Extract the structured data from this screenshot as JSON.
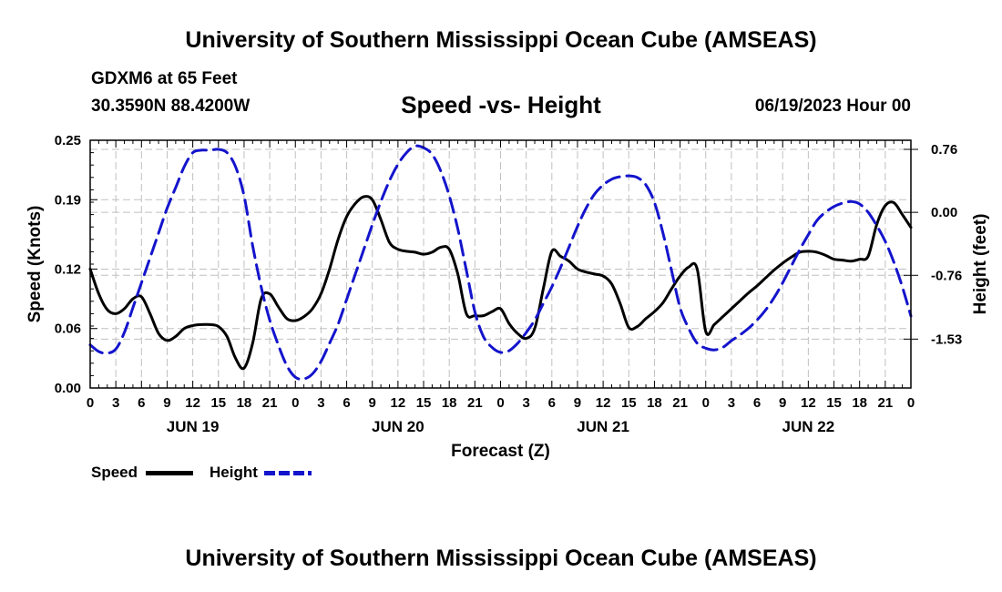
{
  "header": {
    "title": "University of Southern Mississippi Ocean Cube (AMSEAS)",
    "station": "GDXM6 at 65 Feet",
    "location": "30.3590N  88.4200W",
    "run": "06/19/2023 Hour 00"
  },
  "footer": {
    "title": "University of Southern Mississippi Ocean Cube (AMSEAS)"
  },
  "legend": {
    "speed_label": "Speed",
    "height_label": "Height"
  },
  "colors": {
    "speed": "#000000",
    "height": "#1414cc",
    "grid": "#c0c0c0"
  },
  "chart_data": {
    "type": "line",
    "title": "Speed -vs- Height",
    "xlabel": "Forecast (Z)",
    "ylabel": "Speed (Knots)",
    "ylabel_right": "Height (feet)",
    "xlim": [
      0,
      96
    ],
    "ylim": [
      0,
      0.25
    ],
    "ylim_right": [
      -2.12,
      0.87
    ],
    "x_tick_step_hours": 3,
    "x_tick_labels": [
      "0",
      "3",
      "6",
      "9",
      "12",
      "15",
      "18",
      "21",
      "0",
      "3",
      "6",
      "9",
      "12",
      "15",
      "18",
      "21",
      "0",
      "3",
      "6",
      "9",
      "12",
      "15",
      "18",
      "21",
      "0",
      "3",
      "6",
      "9",
      "12",
      "15",
      "18",
      "21",
      "0"
    ],
    "day_labels": [
      {
        "hour": 12,
        "label": "JUN 19"
      },
      {
        "hour": 36,
        "label": "JUN 20"
      },
      {
        "hour": 60,
        "label": "JUN 21"
      },
      {
        "hour": 84,
        "label": "JUN 22"
      }
    ],
    "y_ticks": [
      0,
      0.06,
      0.12,
      0.19,
      0.25
    ],
    "y_tick_labels": [
      "0.00",
      "0.06",
      "0.12",
      "0.19",
      "0.25"
    ],
    "y_right_ticks": [
      0.76,
      0.0,
      -0.76,
      -1.53
    ],
    "y_right_tick_labels": [
      "0.76",
      "0.00",
      "-0.76",
      "-1.53"
    ],
    "grid": true,
    "legend_position": "bottom-left",
    "series": [
      {
        "name": "Speed",
        "axis": "left",
        "style": "solid",
        "x": [
          0,
          1,
          2,
          3,
          4,
          5,
          6,
          7,
          8,
          9,
          10,
          11,
          12,
          13,
          14,
          15,
          16,
          17,
          18,
          19,
          20,
          21,
          22,
          23,
          24,
          25,
          26,
          27,
          28,
          29,
          30,
          31,
          32,
          33,
          34,
          35,
          36,
          37,
          38,
          39,
          40,
          41,
          42,
          43,
          44,
          45,
          46,
          47,
          48,
          49,
          50,
          51,
          52,
          53,
          54,
          55,
          56,
          57,
          58,
          59,
          60,
          61,
          62,
          63,
          64,
          65,
          66,
          67,
          68,
          69,
          70,
          71,
          72,
          73,
          74,
          75,
          76,
          77,
          78,
          79,
          80,
          81,
          82,
          83,
          84,
          85,
          86,
          87,
          88,
          89,
          90,
          91,
          92,
          93,
          94,
          95,
          96
        ],
        "values": [
          0.12,
          0.095,
          0.079,
          0.075,
          0.08,
          0.09,
          0.092,
          0.075,
          0.055,
          0.048,
          0.052,
          0.06,
          0.063,
          0.064,
          0.064,
          0.062,
          0.052,
          0.03,
          0.02,
          0.045,
          0.09,
          0.095,
          0.082,
          0.07,
          0.068,
          0.072,
          0.08,
          0.095,
          0.12,
          0.15,
          0.173,
          0.186,
          0.193,
          0.19,
          0.17,
          0.147,
          0.14,
          0.138,
          0.137,
          0.135,
          0.137,
          0.142,
          0.14,
          0.115,
          0.075,
          0.073,
          0.073,
          0.077,
          0.08,
          0.065,
          0.055,
          0.05,
          0.06,
          0.1,
          0.138,
          0.133,
          0.128,
          0.12,
          0.117,
          0.115,
          0.113,
          0.105,
          0.085,
          0.061,
          0.062,
          0.07,
          0.077,
          0.086,
          0.1,
          0.113,
          0.122,
          0.12,
          0.057,
          0.064,
          0.072,
          0.08,
          0.088,
          0.096,
          0.103,
          0.111,
          0.119,
          0.126,
          0.132,
          0.137,
          0.138,
          0.137,
          0.134,
          0.13,
          0.129,
          0.128,
          0.13,
          0.133,
          0.165,
          0.184,
          0.187,
          0.175,
          0.162
        ]
      },
      {
        "name": "Height",
        "axis": "right",
        "style": "dashed",
        "x": [
          0,
          1,
          2,
          3,
          4,
          5,
          6,
          7,
          8,
          9,
          10,
          11,
          12,
          13,
          14,
          15,
          16,
          17,
          18,
          19,
          20,
          21,
          22,
          23,
          24,
          25,
          26,
          27,
          28,
          29,
          30,
          31,
          32,
          33,
          34,
          35,
          36,
          37,
          38,
          39,
          40,
          41,
          42,
          43,
          44,
          45,
          46,
          47,
          48,
          49,
          50,
          51,
          52,
          53,
          54,
          55,
          56,
          57,
          58,
          59,
          60,
          61,
          62,
          63,
          64,
          65,
          66,
          67,
          68,
          69,
          70,
          71,
          72,
          73,
          74,
          75,
          76,
          77,
          78,
          79,
          80,
          81,
          82,
          83,
          84,
          85,
          86,
          87,
          88,
          89,
          90,
          91,
          92,
          93,
          94,
          95,
          96
        ],
        "values": [
          -1.6,
          -1.68,
          -1.7,
          -1.65,
          -1.45,
          -1.15,
          -0.85,
          -0.55,
          -0.25,
          0.05,
          0.3,
          0.55,
          0.72,
          0.75,
          0.75,
          0.76,
          0.72,
          0.55,
          0.2,
          -0.4,
          -0.9,
          -1.3,
          -1.6,
          -1.85,
          -1.99,
          -2.01,
          -1.95,
          -1.8,
          -1.58,
          -1.35,
          -1.05,
          -0.75,
          -0.45,
          -0.15,
          0.13,
          0.38,
          0.58,
          0.72,
          0.8,
          0.78,
          0.7,
          0.5,
          0.2,
          -0.2,
          -0.7,
          -1.2,
          -1.5,
          -1.63,
          -1.69,
          -1.67,
          -1.58,
          -1.45,
          -1.3,
          -1.1,
          -0.9,
          -0.67,
          -0.42,
          -0.17,
          0.05,
          0.22,
          0.33,
          0.4,
          0.43,
          0.44,
          0.42,
          0.33,
          0.12,
          -0.25,
          -0.7,
          -1.15,
          -1.4,
          -1.58,
          -1.64,
          -1.66,
          -1.63,
          -1.55,
          -1.48,
          -1.4,
          -1.3,
          -1.18,
          -1.03,
          -0.85,
          -0.65,
          -0.45,
          -0.27,
          -0.1,
          0.0,
          0.07,
          0.11,
          0.13,
          0.1,
          0.0,
          -0.16,
          -0.35,
          -0.6,
          -0.9,
          -1.25
        ]
      }
    ]
  }
}
